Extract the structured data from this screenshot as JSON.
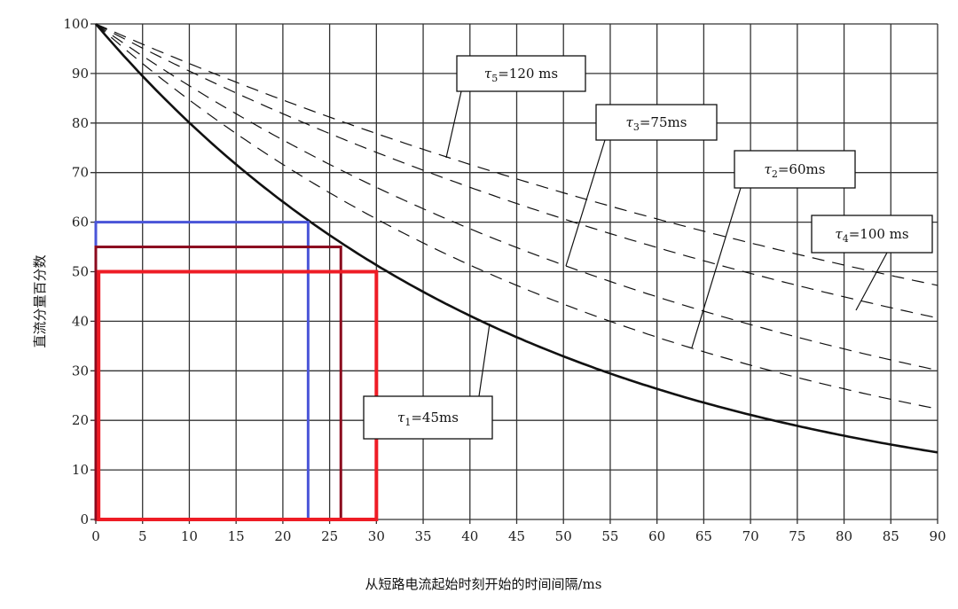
{
  "chart_data": {
    "type": "line",
    "title": "",
    "xlabel": "从短路电流起始时刻开始的时间间隔/ms",
    "ylabel": "直流分量百分数",
    "xlim": [
      0,
      90
    ],
    "ylim": [
      0,
      100
    ],
    "xticks": [
      0,
      5,
      10,
      15,
      20,
      25,
      30,
      35,
      40,
      45,
      50,
      55,
      60,
      65,
      70,
      75,
      80,
      85,
      90
    ],
    "yticks": [
      0,
      10,
      20,
      30,
      40,
      50,
      60,
      70,
      80,
      90,
      100
    ],
    "grid": true,
    "formula": "100·exp(-t/τ)",
    "series": [
      {
        "name": "τ1=45ms",
        "tau": 45,
        "style": "solid",
        "label": {
          "sym": "τ",
          "sub": "1",
          "text": "=45ms"
        }
      },
      {
        "name": "τ2=60ms",
        "tau": 60,
        "style": "dashed",
        "label": {
          "sym": "τ",
          "sub": "2",
          "text": "=60ms"
        }
      },
      {
        "name": "τ3=75ms",
        "tau": 75,
        "style": "dashed",
        "label": {
          "sym": "τ",
          "sub": "3",
          "text": "=75ms"
        }
      },
      {
        "name": "τ4=100ms",
        "tau": 100,
        "style": "dashed",
        "label": {
          "sym": "τ",
          "sub": "4",
          "text": "=100 ms"
        }
      },
      {
        "name": "τ5=120ms",
        "tau": 120,
        "style": "dashed",
        "label": {
          "sym": "τ",
          "sub": "5",
          "text": "=120 ms"
        }
      }
    ],
    "highlight_rects": [
      {
        "x": [
          0,
          22.7
        ],
        "y": [
          0,
          60
        ],
        "color": "#4a55d8"
      },
      {
        "x": [
          0,
          26.2
        ],
        "y": [
          0,
          55
        ],
        "color": "#8b0a1e"
      },
      {
        "x": [
          0.3,
          30
        ],
        "y": [
          0,
          50
        ],
        "color": "#ee1c25"
      }
    ]
  }
}
